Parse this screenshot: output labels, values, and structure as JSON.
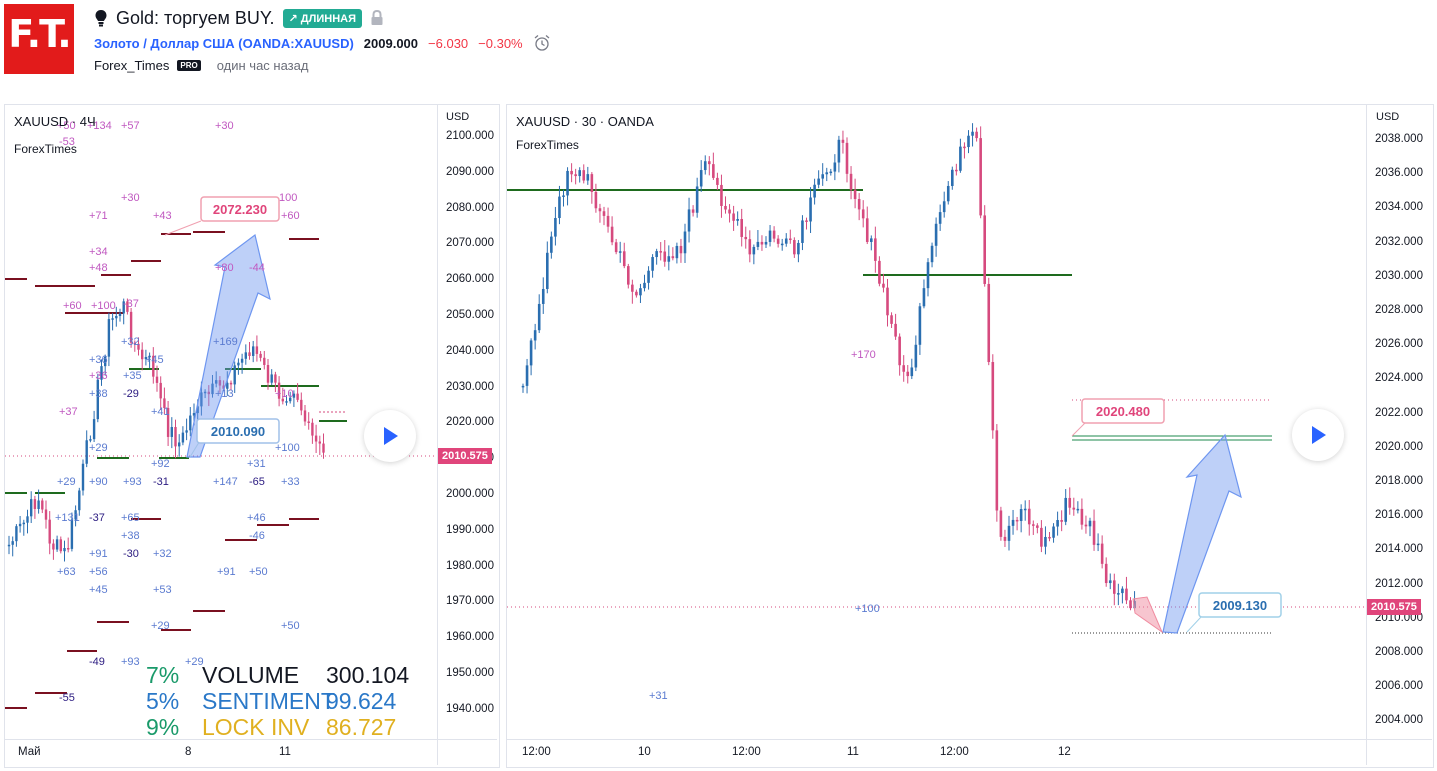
{
  "header": {
    "logo_text": "F.T.",
    "idea_icon": "lightbulb-icon",
    "title": "Gold: торгуем BUY.",
    "badge": "↗ ДЛИННАЯ",
    "lock_icon": "lock-icon",
    "symbol_prefix": "Золото / Доллар США (",
    "symbol_code": "OANDA:XAUUSD",
    "symbol_suffix": ")",
    "price": "2009.000",
    "change": "−6.030",
    "change_pct": "−0.30%",
    "alarm_icon": "alarm-clock-icon",
    "author": "Forex_Times",
    "author_badge": "PRO",
    "time_ago": "один час назад"
  },
  "left_chart": {
    "symbol": "XAUUSD · 4Ч",
    "source": "ForexTimes",
    "currency": "USD",
    "price_axis": [
      "2100.000",
      "2090.000",
      "2080.000",
      "2070.000",
      "2060.000",
      "2050.000",
      "2040.000",
      "2030.000",
      "2020.000",
      "2010.000",
      "2000.000",
      "1990.000",
      "1980.000",
      "1970.000",
      "1960.000",
      "1950.000",
      "1940.000"
    ],
    "current_price": "2010.575",
    "time_axis": [
      "Май",
      "8",
      "11"
    ],
    "target_label": "2072.230",
    "entry_label": "2010.090",
    "stats": {
      "volume_pct": "7%",
      "volume_label": "VOLUME",
      "volume_value": "300.104",
      "sentiment_pct": "5%",
      "sentiment_label": "SENTIMENT",
      "sentiment_value": "99.624",
      "lock_pct": "9%",
      "lock_label": "LOCK INV",
      "lock_value": "86.727"
    },
    "annotations": [
      {
        "t": "+50",
        "c": "#c058c0"
      },
      {
        "t": "+134",
        "c": "#c058c0"
      },
      {
        "t": "+57",
        "c": "#c058c0"
      },
      {
        "t": "+30",
        "c": "#c058c0"
      },
      {
        "t": "-53",
        "c": "#c058c0"
      },
      {
        "t": "+30",
        "c": "#c058c0"
      },
      {
        "t": "+71",
        "c": "#c058c0"
      },
      {
        "t": "+43",
        "c": "#c058c0"
      },
      {
        "t": "100",
        "c": "#c058c0"
      },
      {
        "t": "+60",
        "c": "#c058c0"
      },
      {
        "t": "+34",
        "c": "#c058c0"
      },
      {
        "t": "+48",
        "c": "#c058c0"
      },
      {
        "t": "+80",
        "c": "#c058c0"
      },
      {
        "t": "-44",
        "c": "#c058c0"
      },
      {
        "t": "+60",
        "c": "#c058c0"
      },
      {
        "t": "+100",
        "c": "#c058c0"
      },
      {
        "t": "-37",
        "c": "#c058c0"
      },
      {
        "t": "+32",
        "c": "#5b7bd0"
      },
      {
        "t": "+169",
        "c": "#5b7bd0"
      },
      {
        "t": "+36",
        "c": "#5b7bd0"
      },
      {
        "t": "+45",
        "c": "#5b7bd0"
      },
      {
        "t": "+36",
        "c": "#c058c0"
      },
      {
        "t": "+35",
        "c": "#5b7bd0"
      },
      {
        "t": "+38",
        "c": "#5b7bd0"
      },
      {
        "t": "-29",
        "c": "#2a1a80"
      },
      {
        "t": "+13",
        "c": "#5b7bd0"
      },
      {
        "t": "+10",
        "c": "#c058c0"
      },
      {
        "t": "+37",
        "c": "#c058c0"
      },
      {
        "t": "+41",
        "c": "#5b7bd0"
      },
      {
        "t": "+29",
        "c": "#5b7bd0"
      },
      {
        "t": "+100",
        "c": "#5b7bd0"
      },
      {
        "t": "+92",
        "c": "#5b7bd0"
      },
      {
        "t": "+31",
        "c": "#5b7bd0"
      },
      {
        "t": "+29",
        "c": "#5b7bd0"
      },
      {
        "t": "+90",
        "c": "#5b7bd0"
      },
      {
        "t": "+93",
        "c": "#5b7bd0"
      },
      {
        "t": "-31",
        "c": "#2a1a80"
      },
      {
        "t": "+147",
        "c": "#5b7bd0"
      },
      {
        "t": "-65",
        "c": "#2a1a80"
      },
      {
        "t": "+33",
        "c": "#5b7bd0"
      },
      {
        "t": "+131",
        "c": "#5b7bd0"
      },
      {
        "t": "-37",
        "c": "#2a1a80"
      },
      {
        "t": "+65",
        "c": "#5b7bd0"
      },
      {
        "t": "+46",
        "c": "#5b7bd0"
      },
      {
        "t": "+38",
        "c": "#5b7bd0"
      },
      {
        "t": "-46",
        "c": "#5b7bd0"
      },
      {
        "t": "+91",
        "c": "#5b7bd0"
      },
      {
        "t": "-30",
        "c": "#2a1a80"
      },
      {
        "t": "+32",
        "c": "#5b7bd0"
      },
      {
        "t": "+63",
        "c": "#5b7bd0"
      },
      {
        "t": "+56",
        "c": "#5b7bd0"
      },
      {
        "t": "+91",
        "c": "#5b7bd0"
      },
      {
        "t": "+50",
        "c": "#5b7bd0"
      },
      {
        "t": "+45",
        "c": "#5b7bd0"
      },
      {
        "t": "+53",
        "c": "#5b7bd0"
      },
      {
        "t": "+29",
        "c": "#5b7bd0"
      },
      {
        "t": "+50",
        "c": "#5b7bd0"
      },
      {
        "t": "-49",
        "c": "#2a1a80"
      },
      {
        "t": "+93",
        "c": "#5b7bd0"
      },
      {
        "t": "+29",
        "c": "#5b7bd0"
      },
      {
        "t": "-55",
        "c": "#2a1a80"
      }
    ]
  },
  "right_chart": {
    "symbol": "XAUUSD · 30 · OANDA",
    "source": "ForexTimes",
    "currency": "USD",
    "price_axis": [
      "2038.000",
      "2036.000",
      "2034.000",
      "2032.000",
      "2030.000",
      "2028.000",
      "2026.000",
      "2024.000",
      "2022.000",
      "2020.000",
      "2018.000",
      "2016.000",
      "2014.000",
      "2012.000",
      "2010.000",
      "2008.000",
      "2006.000",
      "2004.000"
    ],
    "current_price": "2010.575",
    "time_axis": [
      "12:00",
      "10",
      "12:00",
      "11",
      "12:00",
      "12"
    ],
    "target_label": "2020.480",
    "entry_label": "2009.130",
    "annotations": [
      {
        "t": "+170",
        "c": "#c058c0"
      },
      {
        "t": "+100",
        "c": "#5b7bd0"
      },
      {
        "t": "+31",
        "c": "#5b7bd0"
      }
    ]
  },
  "colors": {
    "up": "#2a6eb0",
    "down": "#d64a7e",
    "badge": "#22ab94",
    "logo": "#e21b1b",
    "link": "#2962ff",
    "negative": "#f23645",
    "level_green": "#1e6b1e",
    "level_maroon": "#7a1020",
    "vol_pct": "#1a9a6a",
    "sentiment": "#2a78c8",
    "lock": "#e0b020"
  }
}
